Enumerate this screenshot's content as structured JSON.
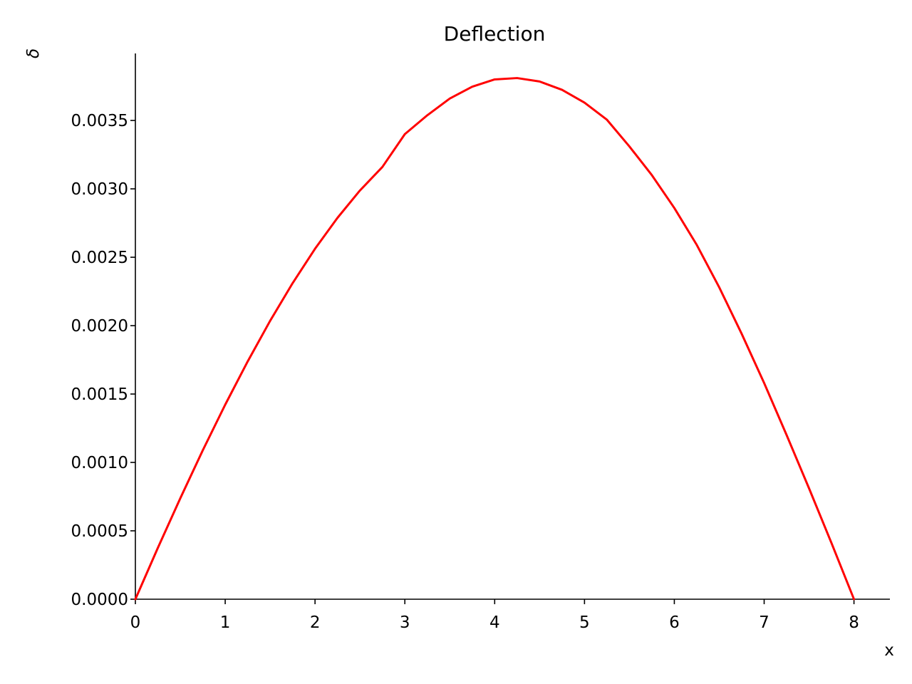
{
  "chart_data": {
    "type": "line",
    "title": "Deflection",
    "xlabel": "x",
    "ylabel": "δ",
    "xlim": [
      0,
      8.4
    ],
    "ylim": [
      0,
      0.00399
    ],
    "x_ticks": [
      0,
      1,
      2,
      3,
      4,
      5,
      6,
      7,
      8
    ],
    "x_tick_labels": [
      "0",
      "1",
      "2",
      "3",
      "4",
      "5",
      "6",
      "7",
      "8"
    ],
    "y_ticks": [
      0,
      0.0005,
      0.001,
      0.0015,
      0.002,
      0.0025,
      0.003,
      0.0035
    ],
    "y_tick_labels": [
      "0.0000",
      "0.0005",
      "0.0010",
      "0.0015",
      "0.0020",
      "0.0025",
      "0.0030",
      "0.0035"
    ],
    "grid": false,
    "series": [
      {
        "color": "#ff0000",
        "x": [
          0,
          0.25,
          0.5,
          0.75,
          1,
          1.25,
          1.5,
          1.75,
          2,
          2.25,
          2.5,
          2.75,
          3,
          3.25,
          3.5,
          3.75,
          4,
          4.25,
          4.5,
          4.75,
          5,
          5.25,
          5.5,
          5.75,
          6,
          6.25,
          6.5,
          6.75,
          7,
          7.25,
          7.5,
          7.75,
          8
        ],
        "y": [
          0,
          0.000375,
          0.000738,
          0.001088,
          0.001422,
          0.001738,
          0.002035,
          0.00231,
          0.002562,
          0.002788,
          0.002988,
          0.00316,
          0.0034,
          0.003538,
          0.00366,
          0.003747,
          0.0038,
          0.00381,
          0.003785,
          0.003724,
          0.00363,
          0.003505,
          0.00331,
          0.0031,
          0.00286,
          0.00259,
          0.00228,
          0.00194,
          0.00158,
          0.0012,
          0.00081,
          0.00041,
          0
        ]
      }
    ]
  }
}
